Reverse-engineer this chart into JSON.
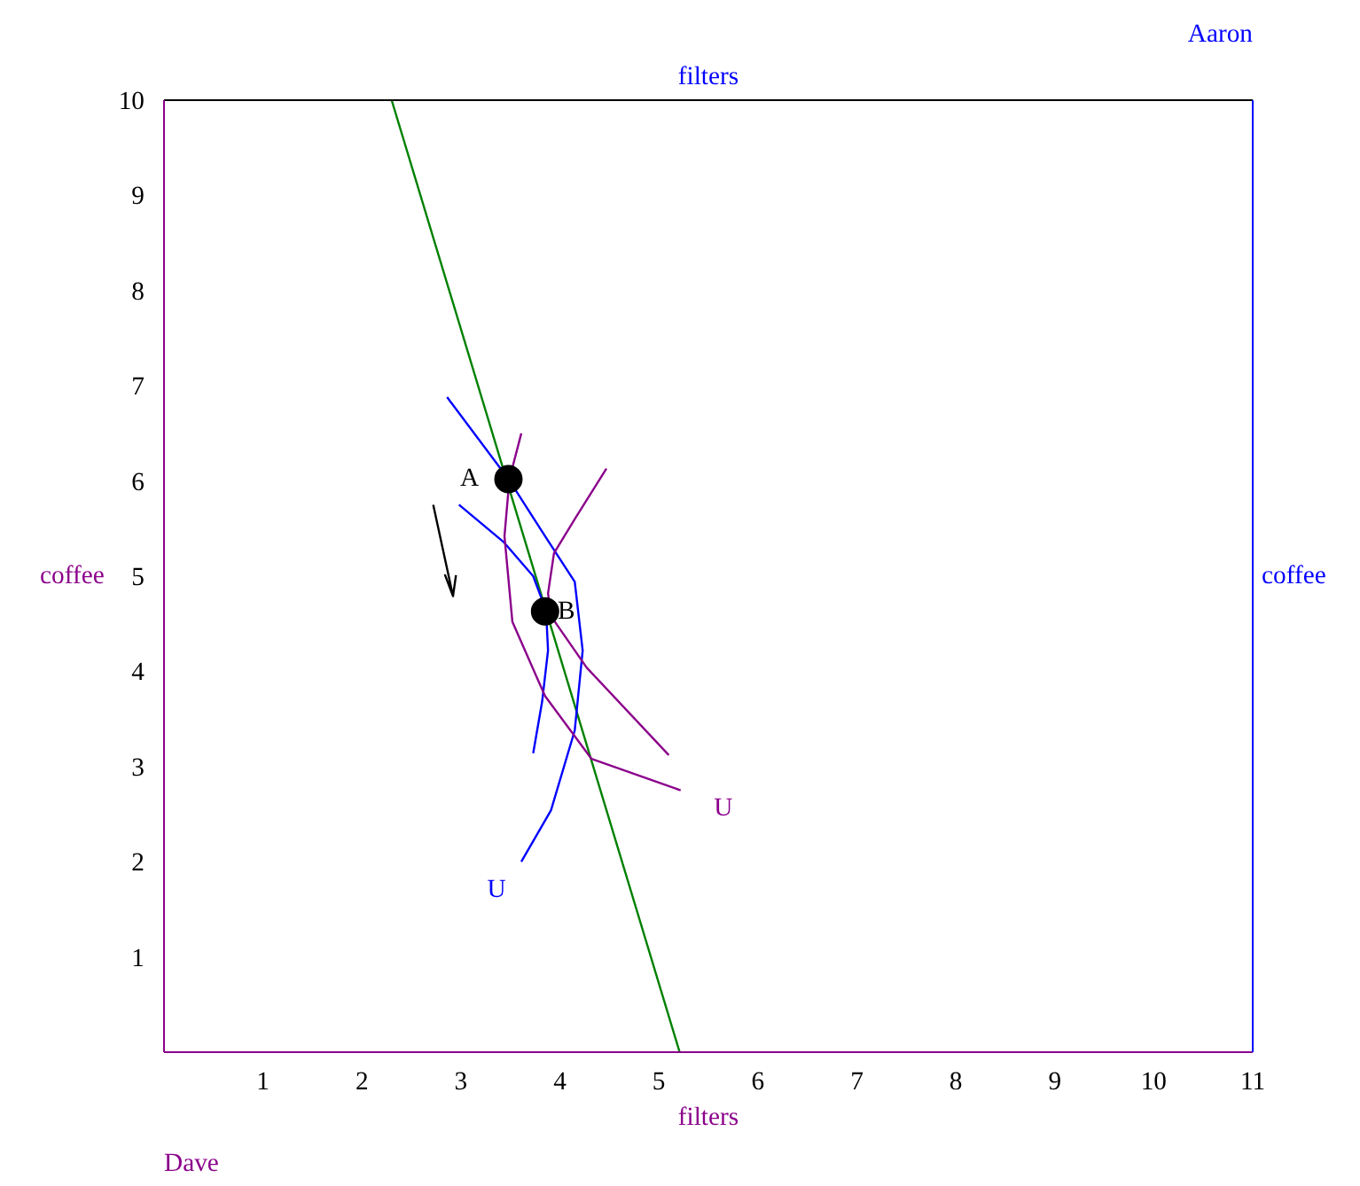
{
  "chart_data": {
    "type": "line",
    "xlabel": "filters",
    "ylabel": "coffee",
    "x2label": "filters",
    "y2label": "coffee",
    "xlim": [
      0,
      11
    ],
    "ylim": [
      0,
      10
    ],
    "xticks": [
      1,
      2,
      3,
      4,
      5,
      6,
      7,
      8,
      9,
      10,
      11
    ],
    "yticks": [
      1,
      2,
      3,
      4,
      5,
      6,
      7,
      8,
      9,
      10
    ],
    "tick_labels": "xy",
    "grid": false,
    "marker": "none",
    "line_style": "solid",
    "series": [
      {
        "color": "#008000",
        "x": [
          2.3,
          5.21
        ],
        "values": [
          10,
          0
        ]
      },
      {
        "color": "#0000ff",
        "x": [
          2.86,
          3.48,
          3.85,
          4.15,
          4.23,
          4.15,
          3.91,
          3.61
        ],
        "values": [
          6.88,
          6.02,
          5.42,
          4.94,
          4.22,
          3.38,
          2.54,
          2.0
        ]
      },
      {
        "color": "#0000ff",
        "x": [
          2.98,
          3.43,
          3.73,
          3.86,
          3.88,
          3.82,
          3.73
        ],
        "values": [
          5.75,
          5.36,
          5.0,
          4.64,
          4.22,
          3.68,
          3.14
        ]
      },
      {
        "color": "#8b008b",
        "x": [
          3.61,
          3.49,
          3.44,
          3.52,
          3.85,
          4.32,
          5.22
        ],
        "values": [
          6.5,
          6.02,
          5.42,
          4.52,
          3.74,
          3.08,
          2.75
        ]
      },
      {
        "color": "#8b008b",
        "x": [
          4.47,
          4.15,
          3.94,
          3.88,
          3.91,
          4.27,
          5.1
        ],
        "values": [
          6.13,
          5.6,
          5.24,
          4.82,
          4.58,
          4.04,
          3.12
        ]
      },
      {
        "type": "line",
        "color": "#000000",
        "x": [
          2.72,
          2.92,
          2.84,
          2.92,
          2.95
        ],
        "values": [
          5.75,
          4.79,
          5.01,
          4.79,
          5.01
        ]
      },
      {
        "type": "scatter",
        "marker": "circle",
        "color": "#000000",
        "x": [
          3.48,
          3.85
        ],
        "values": [
          6.02,
          4.63
        ]
      }
    ],
    "annotations": [
      {
        "text": "A",
        "x": 3.48,
        "y": 6.02
      },
      {
        "text": "B",
        "x": 3.85,
        "y": 4.63
      },
      {
        "text": "U",
        "x": 3.61,
        "y": 2.0
      },
      {
        "text": "U",
        "x": 5.22,
        "y": 2.75
      },
      "Dave",
      "Aaron"
    ]
  }
}
